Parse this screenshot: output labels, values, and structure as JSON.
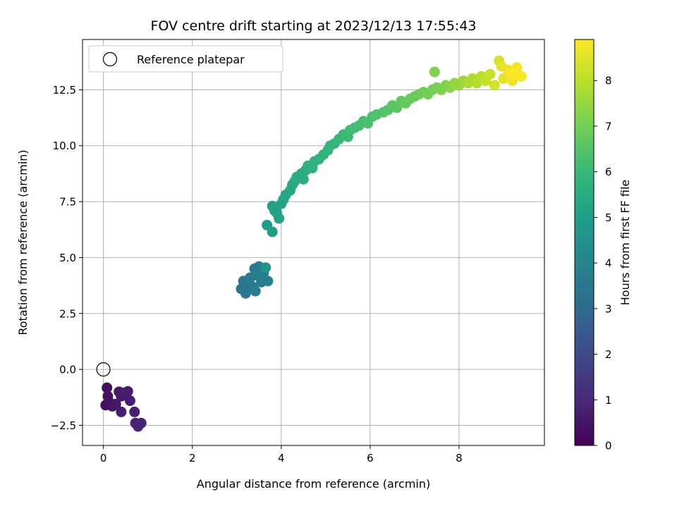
{
  "chart_data": {
    "type": "scatter",
    "title": "FOV centre drift starting at 2023/12/13 17:55:43",
    "xlabel": "Angular distance from reference (arcmin)",
    "ylabel": "Rotation from reference (arcmin)",
    "xlim": [
      -0.47,
      9.92
    ],
    "ylim": [
      -3.4,
      14.75
    ],
    "x_ticks": [
      0,
      2,
      4,
      6,
      8
    ],
    "x_tick_labels": [
      "0",
      "2",
      "4",
      "6",
      "8"
    ],
    "y_ticks": [
      -2.5,
      0.0,
      2.5,
      5.0,
      7.5,
      10.0,
      12.5
    ],
    "y_tick_labels": [
      "−2.5",
      "0.0",
      "2.5",
      "5.0",
      "7.5",
      "10.0",
      "12.5"
    ],
    "grid": true,
    "legend": {
      "placement": "top-left",
      "entries": [
        "Reference platepar"
      ]
    },
    "reference_point": {
      "x": 0.0,
      "y": 0.0,
      "label": "Reference platepar"
    },
    "colorbar": {
      "label": "Hours from first FF file",
      "range": [
        0,
        8.9
      ],
      "ticks": [
        0,
        1,
        2,
        3,
        4,
        5,
        6,
        7,
        8
      ],
      "tick_labels": [
        "0",
        "1",
        "2",
        "3",
        "4",
        "5",
        "6",
        "7",
        "8"
      ],
      "colormap": "viridis"
    },
    "colors": {
      "viridis": [
        "#440154",
        "#482878",
        "#3e4989",
        "#31688e",
        "#26828e",
        "#1f9e89",
        "#35b779",
        "#6ece58",
        "#b5de2b",
        "#fde725"
      ],
      "grid": "#b0b0b0",
      "axis": "#000000"
    },
    "points": [
      [
        0.05,
        -1.6,
        0.3
      ],
      [
        0.08,
        -0.82,
        0.35
      ],
      [
        0.1,
        -1.2,
        0.4
      ],
      [
        0.15,
        -1.5,
        0.45
      ],
      [
        0.2,
        -1.65,
        0.5
      ],
      [
        0.28,
        -1.55,
        0.55
      ],
      [
        0.35,
        -1.0,
        0.6
      ],
      [
        0.4,
        -1.2,
        0.62
      ],
      [
        0.45,
        -1.05,
        0.65
      ],
      [
        0.5,
        -1.1,
        0.68
      ],
      [
        0.55,
        -0.98,
        0.7
      ],
      [
        0.6,
        -1.4,
        0.72
      ],
      [
        0.4,
        -1.9,
        0.74
      ],
      [
        0.7,
        -1.9,
        0.78
      ],
      [
        0.72,
        -2.4,
        0.82
      ],
      [
        0.78,
        -2.55,
        0.86
      ],
      [
        0.85,
        -2.4,
        0.9
      ],
      [
        3.1,
        3.6,
        3.4
      ],
      [
        3.15,
        3.95,
        3.45
      ],
      [
        3.2,
        3.4,
        3.5
      ],
      [
        3.25,
        3.8,
        3.55
      ],
      [
        3.3,
        4.1,
        3.6
      ],
      [
        3.35,
        3.7,
        3.62
      ],
      [
        3.4,
        4.5,
        3.65
      ],
      [
        3.42,
        3.5,
        3.68
      ],
      [
        3.45,
        4.2,
        3.7
      ],
      [
        3.5,
        4.6,
        3.72
      ],
      [
        3.55,
        3.9,
        3.75
      ],
      [
        3.6,
        4.3,
        3.78
      ],
      [
        3.65,
        4.55,
        4.6
      ],
      [
        3.7,
        3.95,
        3.82
      ],
      [
        3.68,
        6.45,
        4.9
      ],
      [
        3.8,
        6.15,
        4.95
      ],
      [
        3.8,
        7.3,
        5.05
      ],
      [
        3.85,
        7.1,
        5.1
      ],
      [
        3.9,
        7.0,
        5.12
      ],
      [
        3.95,
        6.75,
        5.15
      ],
      [
        4.0,
        7.4,
        5.2
      ],
      [
        4.05,
        7.6,
        5.25
      ],
      [
        4.1,
        7.8,
        5.28
      ],
      [
        4.2,
        8.0,
        5.32
      ],
      [
        4.25,
        8.25,
        5.36
      ],
      [
        4.3,
        8.4,
        5.4
      ],
      [
        4.35,
        8.6,
        5.44
      ],
      [
        4.45,
        8.75,
        5.48
      ],
      [
        4.5,
        8.5,
        5.52
      ],
      [
        4.55,
        8.9,
        5.55
      ],
      [
        4.6,
        9.1,
        5.6
      ],
      [
        4.7,
        9.0,
        5.65
      ],
      [
        4.75,
        9.3,
        5.7
      ],
      [
        4.85,
        9.4,
        5.74
      ],
      [
        4.95,
        9.6,
        5.78
      ],
      [
        5.05,
        9.8,
        5.82
      ],
      [
        5.1,
        10.0,
        5.86
      ],
      [
        5.2,
        10.1,
        5.9
      ],
      [
        5.3,
        10.3,
        5.95
      ],
      [
        5.4,
        10.5,
        6.0
      ],
      [
        5.5,
        10.4,
        6.05
      ],
      [
        5.55,
        10.7,
        6.1
      ],
      [
        5.65,
        10.8,
        6.15
      ],
      [
        5.75,
        10.9,
        6.2
      ],
      [
        5.85,
        11.1,
        6.25
      ],
      [
        5.95,
        11.0,
        6.3
      ],
      [
        6.05,
        11.3,
        6.35
      ],
      [
        6.15,
        11.4,
        6.4
      ],
      [
        6.3,
        11.5,
        6.45
      ],
      [
        6.4,
        11.6,
        6.5
      ],
      [
        6.5,
        11.8,
        6.55
      ],
      [
        6.6,
        11.7,
        6.6
      ],
      [
        6.7,
        12.0,
        6.65
      ],
      [
        6.8,
        11.9,
        6.7
      ],
      [
        6.9,
        12.1,
        6.75
      ],
      [
        7.0,
        12.2,
        6.8
      ],
      [
        7.1,
        12.3,
        6.85
      ],
      [
        7.2,
        12.4,
        6.9
      ],
      [
        7.3,
        12.3,
        6.95
      ],
      [
        7.4,
        12.5,
        7.0
      ],
      [
        7.5,
        12.6,
        7.05
      ],
      [
        7.6,
        12.5,
        7.1
      ],
      [
        7.45,
        13.3,
        7.15
      ],
      [
        7.7,
        12.7,
        7.2
      ],
      [
        7.8,
        12.6,
        7.3
      ],
      [
        7.9,
        12.8,
        7.4
      ],
      [
        8.0,
        12.7,
        7.5
      ],
      [
        8.1,
        12.9,
        7.6
      ],
      [
        8.2,
        12.8,
        7.7
      ],
      [
        8.3,
        13.0,
        7.8
      ],
      [
        8.4,
        12.8,
        7.9
      ],
      [
        8.5,
        13.1,
        8.0
      ],
      [
        8.6,
        12.9,
        8.1
      ],
      [
        8.7,
        13.2,
        8.2
      ],
      [
        8.8,
        12.7,
        8.3
      ],
      [
        8.9,
        13.8,
        8.4
      ],
      [
        9.0,
        13.0,
        8.5
      ],
      [
        9.1,
        13.4,
        8.6
      ],
      [
        9.2,
        12.9,
        8.7
      ],
      [
        9.3,
        13.5,
        8.75
      ],
      [
        9.4,
        13.1,
        8.85
      ],
      [
        9.15,
        13.2,
        8.8
      ],
      [
        8.95,
        13.55,
        8.6
      ],
      [
        9.25,
        13.25,
        8.9
      ]
    ]
  }
}
